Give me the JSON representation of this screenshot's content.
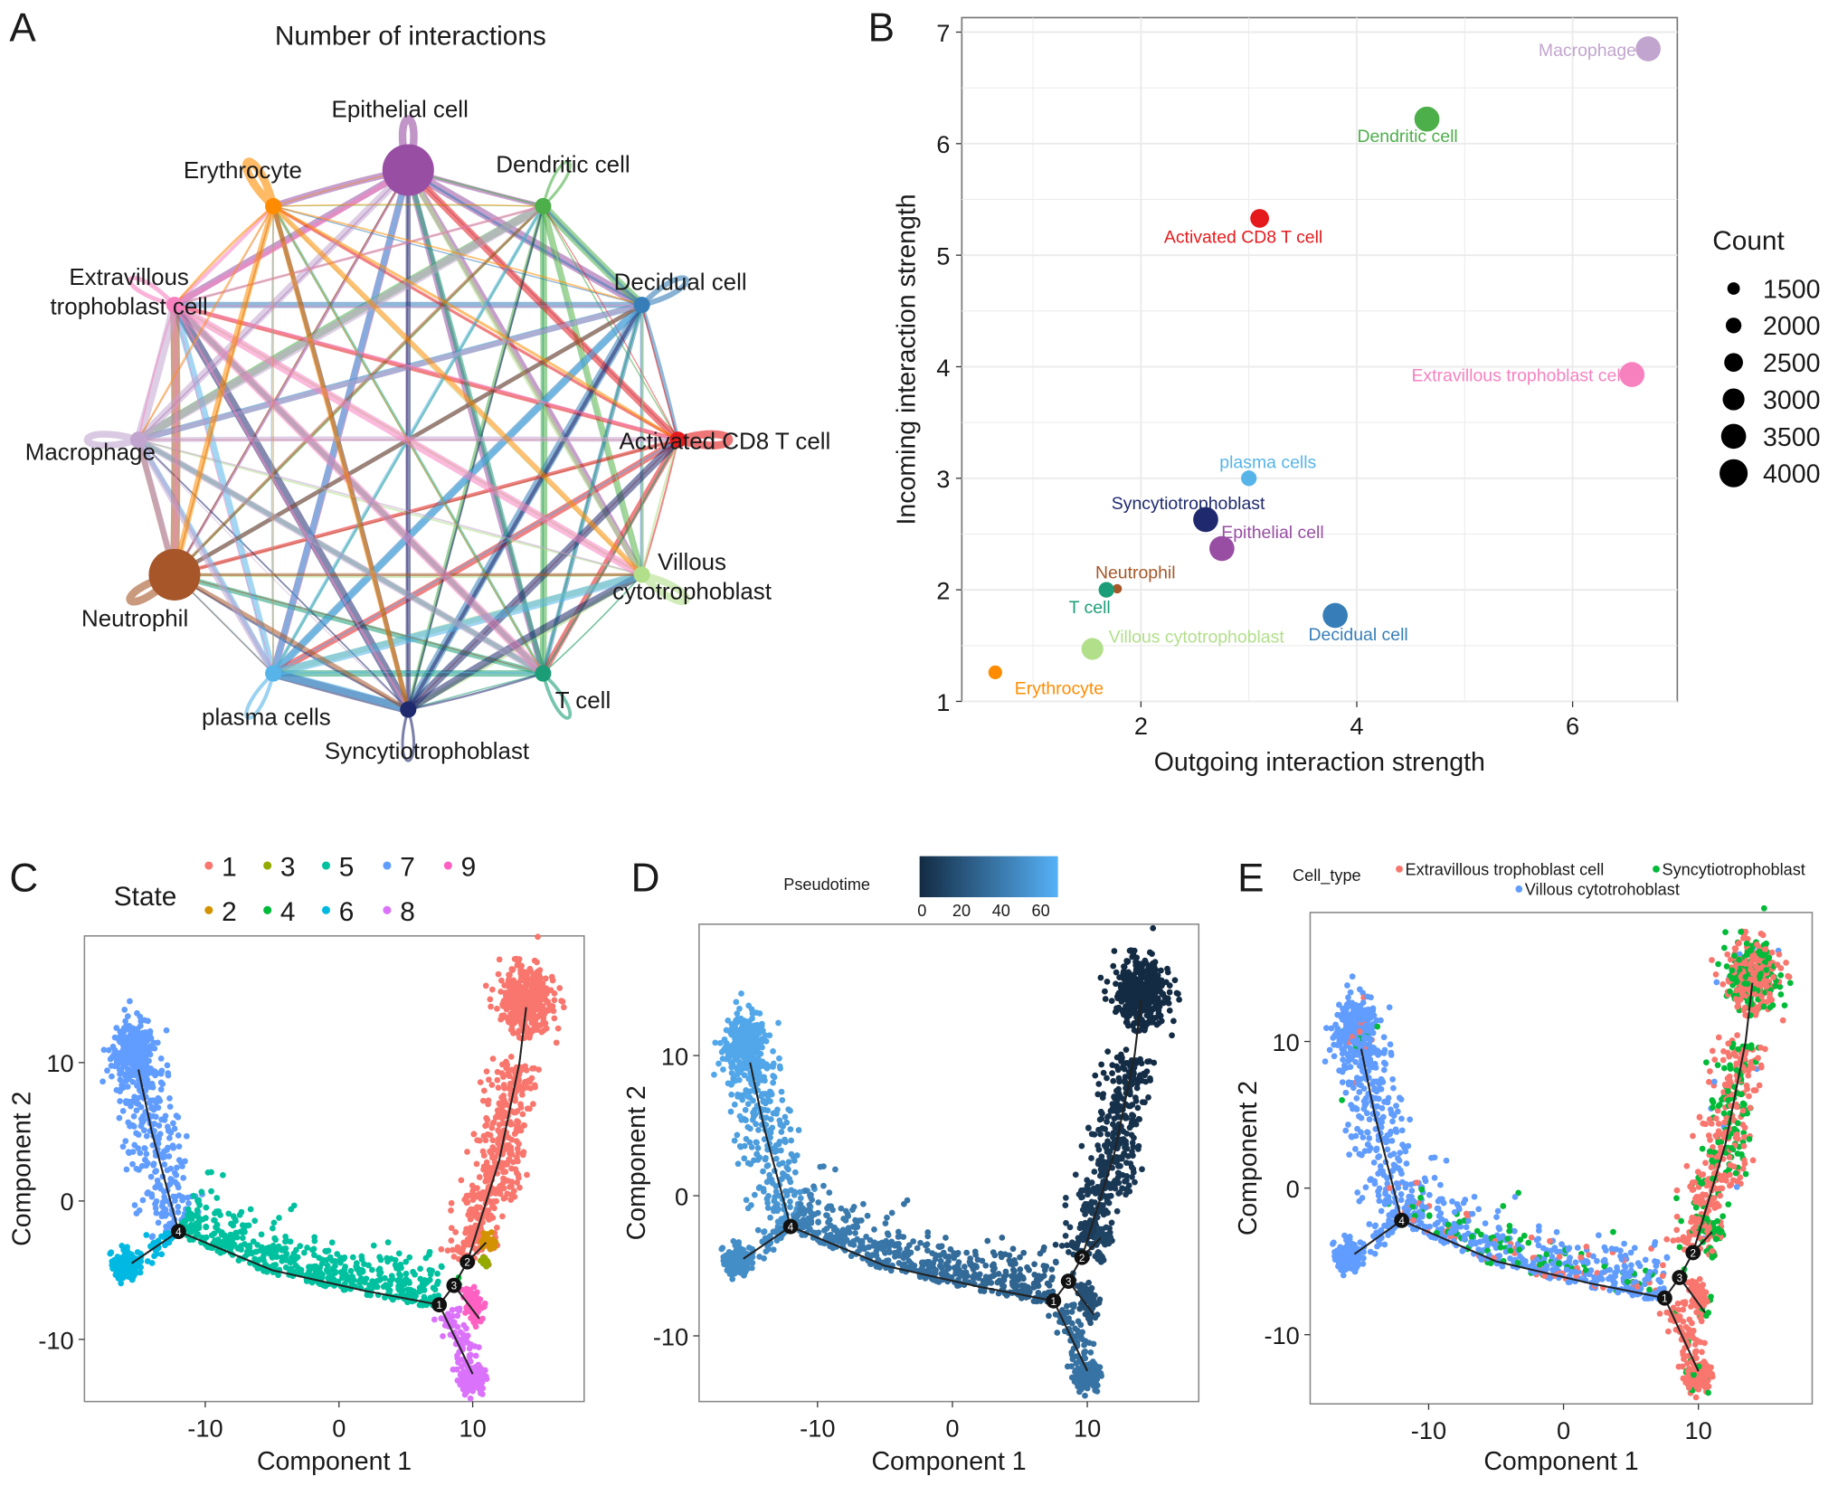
{
  "panel_labels": [
    "A",
    "B",
    "C",
    "D",
    "E"
  ],
  "chart_data": [
    {
      "panel": "A",
      "type": "network",
      "title": "Number of interactions",
      "nodes": [
        {
          "name": "Epithelial cell",
          "color": "#984ea3",
          "size": "large"
        },
        {
          "name": "Dendritic cell",
          "color": "#4daf4a",
          "size": "small"
        },
        {
          "name": "Decidual cell",
          "color": "#377eb8",
          "size": "small"
        },
        {
          "name": "Activated CD8 T cell",
          "color": "#e41a1c",
          "size": "small"
        },
        {
          "name": "Villous cytotrophoblast",
          "color": "#b2df8a",
          "size": "small"
        },
        {
          "name": "T cell",
          "color": "#1b9e77",
          "size": "small"
        },
        {
          "name": "Syncytiotrophoblast",
          "color": "#1f2a6e",
          "size": "small"
        },
        {
          "name": "plasma cells",
          "color": "#56b4e9",
          "size": "small"
        },
        {
          "name": "Neutrophil",
          "color": "#a65628",
          "size": "large"
        },
        {
          "name": "Macrophage",
          "color": "#c2a5cf",
          "size": "small"
        },
        {
          "name": "Extravillous trophoblast cell",
          "color": "#f781bf",
          "size": "small"
        },
        {
          "name": "Erythrocyte",
          "color": "#ff8c00",
          "size": "small"
        }
      ],
      "label_lines": {
        "Extravillous trophoblast cell": [
          "Extravillous",
          "trophoblast cell"
        ],
        "Villous cytotrophoblast": [
          "Villous",
          "cytotrophoblast"
        ]
      },
      "edges": "all pairs and self-loops, colored by source"
    },
    {
      "panel": "B",
      "type": "scatter",
      "xlabel": "Outgoing interaction strength",
      "ylabel": "Incoming interaction strength",
      "xlim": [
        0.34,
        6.97
      ],
      "ylim": [
        1,
        7.13
      ],
      "xticks": [
        2,
        4,
        6
      ],
      "yticks": [
        1,
        2,
        3,
        4,
        5,
        6,
        7
      ],
      "grid": true,
      "legend": {
        "title": "Count",
        "position": "right",
        "sizes": [
          1500,
          2000,
          2500,
          3000,
          3500,
          4000
        ]
      },
      "points": [
        {
          "name": "Macrophage",
          "x": 6.7,
          "y": 6.85,
          "count": 3500,
          "color": "#c2a5cf"
        },
        {
          "name": "Dendritic cell",
          "x": 4.65,
          "y": 6.22,
          "count": 3500,
          "color": "#4daf4a"
        },
        {
          "name": "Activated CD8 T cell",
          "x": 3.1,
          "y": 5.33,
          "count": 2500,
          "color": "#e41a1c"
        },
        {
          "name": "Extravillous trophoblast cell",
          "x": 6.55,
          "y": 3.93,
          "count": 3500,
          "color": "#f781bf"
        },
        {
          "name": "plasma cells",
          "x": 3.0,
          "y": 3.0,
          "count": 2000,
          "color": "#56b4e9"
        },
        {
          "name": "Syncytiotrophoblast",
          "x": 2.6,
          "y": 2.63,
          "count": 3500,
          "color": "#1f2a6e"
        },
        {
          "name": "Epithelial cell",
          "x": 2.75,
          "y": 2.37,
          "count": 3500,
          "color": "#984ea3"
        },
        {
          "name": "Neutrophil",
          "x": 1.78,
          "y": 2.01,
          "count": 1000,
          "color": "#a65628"
        },
        {
          "name": "T cell",
          "x": 1.68,
          "y": 2.0,
          "count": 2000,
          "color": "#1b9e77"
        },
        {
          "name": "Decidual cell",
          "x": 3.8,
          "y": 1.77,
          "count": 3500,
          "color": "#377eb8"
        },
        {
          "name": "Villous cytotrophoblast",
          "x": 1.55,
          "y": 1.47,
          "count": 3000,
          "color": "#b2df8a"
        },
        {
          "name": "Erythrocyte",
          "x": 0.65,
          "y": 1.26,
          "count": 1700,
          "color": "#ff8c00"
        }
      ]
    },
    {
      "panel": "C",
      "type": "scatter",
      "xlabel": "Component 1",
      "ylabel": "Component 2",
      "xticks": [
        -10,
        0,
        10
      ],
      "yticks": [
        -10,
        0,
        10
      ],
      "legend": {
        "title": "State",
        "position": "top",
        "items": [
          {
            "label": "1",
            "color": "#F8766D"
          },
          {
            "label": "2",
            "color": "#D39200"
          },
          {
            "label": "3",
            "color": "#93AA00"
          },
          {
            "label": "4",
            "color": "#00BA38"
          },
          {
            "label": "5",
            "color": "#00C19F"
          },
          {
            "label": "6",
            "color": "#00B9E3"
          },
          {
            "label": "7",
            "color": "#619CFF"
          },
          {
            "label": "8",
            "color": "#DB72FB"
          },
          {
            "label": "9",
            "color": "#FF61C3"
          }
        ]
      }
    },
    {
      "panel": "D",
      "type": "scatter",
      "xlabel": "Component 1",
      "ylabel": "Component 2",
      "xticks": [
        -10,
        0,
        10
      ],
      "yticks": [
        -10,
        0,
        10
      ],
      "legend": {
        "title": "Pseudotime",
        "position": "top",
        "ticks": [
          0,
          20,
          40,
          60
        ],
        "low_color": "#132B43",
        "high_color": "#56B1F7",
        "range": [
          0,
          65
        ]
      }
    },
    {
      "panel": "E",
      "type": "scatter",
      "xlabel": "Component 1",
      "ylabel": "Component 2",
      "xticks": [
        -10,
        0,
        10
      ],
      "yticks": [
        -10,
        0,
        10
      ],
      "legend": {
        "title": "Cell_type",
        "position": "top",
        "items": [
          {
            "label": "Extravillous trophoblast cell",
            "color": "#F8766D"
          },
          {
            "label": "Syncytiotrophoblast",
            "color": "#00BA38"
          },
          {
            "label": "Villous cytotrohoblast",
            "color": "#619CFF"
          }
        ]
      }
    }
  ],
  "trajectory": {
    "xlim": [
      -19,
      18.5
    ],
    "ylim": [
      -14.5,
      19
    ],
    "branch_points": [
      {
        "label": "1",
        "x": 7.5,
        "y": -7.5
      },
      {
        "label": "2",
        "x": 9.6,
        "y": -4.4
      },
      {
        "label": "3",
        "x": 8.6,
        "y": -6.1
      },
      {
        "label": "4",
        "x": -12,
        "y": -2.2
      }
    ],
    "branches": [
      {
        "state": 7,
        "path": [
          [
            -12,
            -2.2
          ],
          [
            -14,
            5
          ],
          [
            -15,
            9.5
          ]
        ],
        "n": 250,
        "spread": 1.0,
        "blob": {
          "x": -15.3,
          "y": 10.5,
          "sx": 0.8,
          "sy": 1.2,
          "n": 300
        },
        "pseudotime": [
          50,
          60
        ],
        "cell_type_mix": {
          "villous": 0.95,
          "evt": 0.02,
          "syn": 0.03
        }
      },
      {
        "state": 6,
        "path": [
          [
            -12,
            -2.2
          ],
          [
            -15.5,
            -4.5
          ]
        ],
        "n": 40,
        "spread": 0.4,
        "blob": {
          "x": -16,
          "y": -4.6,
          "sx": 0.5,
          "sy": 0.6,
          "n": 120
        },
        "pseudotime": [
          45,
          48
        ],
        "cell_type_mix": {
          "villous": 1,
          "evt": 0,
          "syn": 0
        }
      },
      {
        "state": 5,
        "path": [
          [
            -12,
            -2.2
          ],
          [
            -5,
            -5
          ],
          [
            2,
            -6.5
          ],
          [
            7.5,
            -7.5
          ]
        ],
        "n": 520,
        "spread": 1.2,
        "pseudotime": [
          42,
          25
        ],
        "cell_type_mix": {
          "villous": 0.72,
          "evt": 0.14,
          "syn": 0.14
        }
      },
      {
        "state": 1,
        "path": [
          [
            9.6,
            -4.4
          ],
          [
            12,
            3
          ],
          [
            13.5,
            10
          ]
        ],
        "n": 420,
        "spread": 0.9,
        "blob": {
          "x": 14,
          "y": 14.5,
          "sx": 1.0,
          "sy": 1.2,
          "n": 420
        },
        "pseudotime": [
          10,
          0
        ],
        "cell_type_mix": {
          "villous": 0.02,
          "evt": 0.62,
          "syn": 0.36
        }
      },
      {
        "state": 2,
        "blob": {
          "x": 11.2,
          "y": -3,
          "sx": 0.3,
          "sy": 0.4,
          "n": 30
        },
        "pseudotime": [
          12,
          12
        ],
        "cell_type_mix": {
          "villous": 0,
          "evt": 0.3,
          "syn": 0.7
        }
      },
      {
        "state": 3,
        "blob": {
          "x": 11,
          "y": -4.4,
          "sx": 0.2,
          "sy": 0.3,
          "n": 10
        },
        "pseudotime": [
          14,
          14
        ],
        "cell_type_mix": {
          "villous": 0,
          "evt": 0.3,
          "syn": 0.7
        }
      },
      {
        "state": 9,
        "path": [
          [
            9.5,
            -6.3
          ],
          [
            10.5,
            -9
          ]
        ],
        "n": 60,
        "spread": 0.4,
        "pseudotime": [
          18,
          20
        ],
        "cell_type_mix": {
          "villous": 0,
          "evt": 0.85,
          "syn": 0.15
        }
      },
      {
        "state": 8,
        "path": [
          [
            8,
            -8
          ],
          [
            10,
            -12
          ]
        ],
        "n": 70,
        "spread": 0.45,
        "blob": {
          "x": 10,
          "y": -12.8,
          "sx": 0.5,
          "sy": 0.5,
          "n": 120
        },
        "pseudotime": [
          28,
          35
        ],
        "cell_type_mix": {
          "villous": 0,
          "evt": 0.9,
          "syn": 0.1
        }
      },
      {
        "state": 4,
        "blob": {
          "x": 8.7,
          "y": -6,
          "sx": 0.2,
          "sy": 0.2,
          "n": 8
        },
        "pseudotime": [
          16,
          16
        ],
        "cell_type_mix": {
          "villous": 0,
          "evt": 0,
          "syn": 1
        }
      }
    ]
  }
}
